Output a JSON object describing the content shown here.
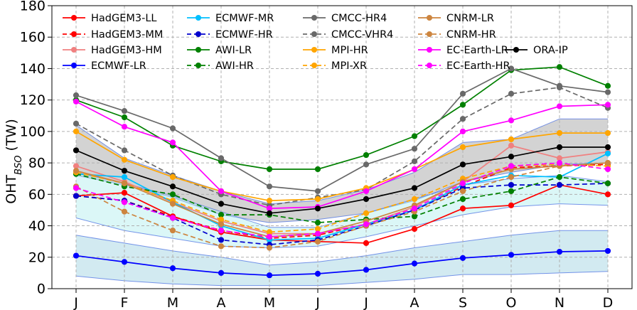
{
  "chart_data": {
    "type": "line",
    "xlabel": "",
    "ylabel_main": "OHT",
    "ylabel_sub": "BSO",
    "ylabel_unit": " (TW)",
    "ylim": [
      0,
      180
    ],
    "yticks": [
      0,
      20,
      40,
      60,
      80,
      100,
      120,
      140,
      160,
      180
    ],
    "grid": true,
    "legend_position": "top",
    "categories": [
      "J",
      "F",
      "M",
      "A",
      "M",
      "J",
      "J",
      "A",
      "S",
      "O",
      "N",
      "D"
    ],
    "bands": [
      {
        "name": "upper-band",
        "color": "#808080",
        "opacity": 0.35,
        "low": [
          72,
          66,
          58,
          47,
          42,
          44,
          48,
          56,
          68,
          74,
          79,
          80
        ],
        "high": [
          104,
          83,
          72,
          62,
          54,
          56,
          63,
          74,
          93,
          95,
          108,
          108
        ]
      },
      {
        "name": "middle-band",
        "color": "#afeeee",
        "opacity": 0.45,
        "low": [
          45,
          37,
          32,
          27,
          26,
          27,
          33,
          40,
          47,
          52,
          54,
          53
        ],
        "high": [
          74,
          67,
          59,
          49,
          39,
          39,
          48,
          57,
          66,
          70,
          72,
          68
        ]
      },
      {
        "name": "lower-band",
        "color": "#add8e6",
        "opacity": 0.55,
        "low": [
          8,
          5,
          3,
          2,
          2,
          2,
          4,
          6,
          9,
          9,
          10,
          11
        ],
        "high": [
          34,
          29,
          24,
          20,
          15,
          17,
          21,
          26,
          30,
          34,
          37,
          37
        ]
      }
    ],
    "series": [
      {
        "name": "HadGEM3-LL",
        "color": "#ff0000",
        "dash": false,
        "values": [
          59,
          61,
          46,
          36,
          31,
          30,
          29,
          38,
          51,
          53,
          66,
          60
        ]
      },
      {
        "name": "HadGEM3-MM",
        "color": "#ff0000",
        "dash": true,
        "values": [
          59,
          56,
          46,
          37,
          32,
          34,
          41,
          50,
          65,
          77,
          78,
          79
        ]
      },
      {
        "name": "HadGEM3-HM",
        "color": "#f08080",
        "dash": false,
        "values": [
          78,
          68,
          55,
          43,
          35,
          35,
          41,
          52,
          68,
          91,
          83,
          87
        ]
      },
      {
        "name": "ECMWF-LR",
        "color": "#0000ff",
        "dash": false,
        "values": [
          21,
          17,
          13,
          10,
          8.5,
          9.5,
          12,
          16,
          19.5,
          21.5,
          23.5,
          24
        ]
      },
      {
        "name": "ECMWF-MR",
        "color": "#00bfff",
        "dash": false,
        "values": [
          73,
          71,
          55,
          40,
          31,
          32,
          41,
          50,
          66,
          72,
          71,
          86
        ]
      },
      {
        "name": "ECMWF-HR",
        "color": "#0000cd",
        "dash": true,
        "values": [
          59,
          56,
          45,
          31,
          28,
          31,
          40,
          50,
          64,
          66,
          66,
          67
        ]
      },
      {
        "name": "AWI-LR",
        "color": "#008000",
        "dash": false,
        "values": [
          120,
          109,
          91,
          81,
          76,
          76,
          85,
          97,
          117,
          139,
          141,
          129
        ]
      },
      {
        "name": "AWI-HR",
        "color": "#008000",
        "dash": true,
        "values": [
          73,
          65,
          60,
          47,
          47,
          42,
          44,
          46,
          57,
          62,
          71,
          67
        ]
      },
      {
        "name": "CMCC-HR4",
        "color": "#696969",
        "dash": false,
        "values": [
          123,
          113,
          102,
          83,
          65,
          62,
          79,
          89,
          124,
          140,
          129,
          125
        ]
      },
      {
        "name": "CMCC-VHR4",
        "color": "#696969",
        "dash": true,
        "values": [
          105,
          88,
          72,
          60,
          53,
          58,
          63,
          81,
          108,
          124,
          128,
          115
        ]
      },
      {
        "name": "MPI-HR",
        "color": "#ffa500",
        "dash": false,
        "values": [
          100,
          82,
          71,
          62,
          56,
          57,
          64,
          76,
          90,
          95,
          99,
          99
        ]
      },
      {
        "name": "MPI-XR",
        "color": "#ffa500",
        "dash": true,
        "values": [
          74,
          67,
          56,
          44,
          36,
          38,
          48,
          57,
          70,
          78,
          79,
          78
        ]
      },
      {
        "name": "CNRM-LR",
        "color": "#cd853f",
        "dash": false,
        "values": [
          75,
          67,
          54,
          41,
          33,
          35,
          43,
          53,
          68,
          76,
          78,
          80
        ]
      },
      {
        "name": "CNRM-HR",
        "color": "#cd853f",
        "dash": true,
        "values": [
          65,
          49,
          37,
          27,
          26,
          30,
          40,
          49,
          62,
          71,
          78,
          80
        ]
      },
      {
        "name": "EC-Earth-LR",
        "color": "#ff00ff",
        "dash": false,
        "values": [
          119,
          103,
          93,
          62,
          51,
          52,
          62,
          76,
          100,
          107,
          116,
          117
        ]
      },
      {
        "name": "EC-Earth-HR",
        "color": "#ff00ff",
        "dash": true,
        "values": [
          64,
          55,
          45,
          37,
          33,
          35,
          41,
          51,
          67,
          78,
          80,
          76
        ]
      },
      {
        "name": "ORA-IP",
        "color": "#000000",
        "dash": false,
        "values": [
          88,
          75,
          65,
          54,
          48,
          51,
          57,
          64,
          79,
          84,
          90,
          90
        ]
      }
    ]
  }
}
